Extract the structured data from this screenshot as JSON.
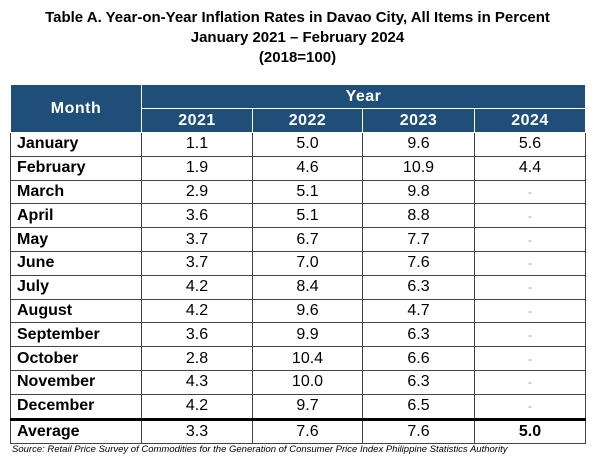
{
  "header": {
    "title_lines": [
      "Table A. Year-on-Year Inflation Rates in Davao City, All Items in Percent",
      "January 2021 – February 2024",
      "(2018=100)"
    ]
  },
  "table": {
    "month_header": "Month",
    "year_header": "Year",
    "years": [
      "2021",
      "2022",
      "2023",
      "2024"
    ],
    "rows": [
      [
        "January",
        "1.1",
        "5.0",
        "9.6",
        "5.6"
      ],
      [
        "February",
        "1.9",
        "4.6",
        "10.9",
        "4.4"
      ],
      [
        "March",
        "2.9",
        "5.1",
        "9.8",
        "-"
      ],
      [
        "April",
        "3.6",
        "5.1",
        "8.8",
        "-"
      ],
      [
        "May",
        "3.7",
        "6.7",
        "7.7",
        "-"
      ],
      [
        "June",
        "3.7",
        "7.0",
        "7.6",
        "-"
      ],
      [
        "July",
        "4.2",
        "8.4",
        "6.3",
        "-"
      ],
      [
        "August",
        "4.2",
        "9.6",
        "4.7",
        "-"
      ],
      [
        "September",
        "3.6",
        "9.9",
        "6.3",
        "-"
      ],
      [
        "October",
        "2.8",
        "10.4",
        "6.6",
        "-"
      ],
      [
        "November",
        "4.3",
        "10.0",
        "6.3",
        "-"
      ],
      [
        "December",
        "4.2",
        "9.7",
        "6.5",
        "-"
      ]
    ],
    "average": [
      "Average",
      "3.3",
      "7.6",
      "7.6",
      "5.0"
    ]
  },
  "source": "Source: Retail Price Survey of Commodities for the Generation of Consumer Price Index Philippine Statistics Authority"
}
